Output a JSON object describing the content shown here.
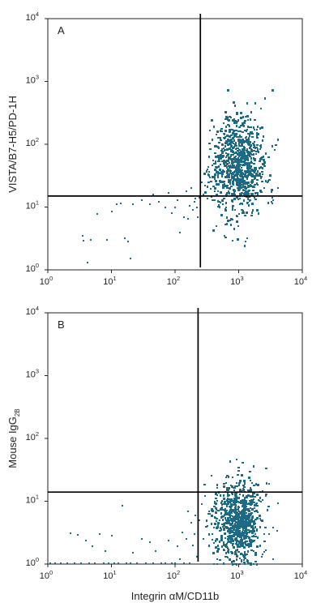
{
  "chart_data": [
    {
      "type": "scatter",
      "panel_label": "A",
      "xlabel": "",
      "ylabel": "VISTA/B7-H5/PD-1H",
      "x_scale": "log",
      "y_scale": "log",
      "xlim": [
        1,
        10000
      ],
      "ylim": [
        1,
        10000
      ],
      "xticks": [
        1,
        10,
        100,
        1000,
        10000
      ],
      "yticks": [
        1,
        10,
        100,
        1000,
        10000
      ],
      "tick_base": "10",
      "tick_exponents": [
        "0",
        "1",
        "2",
        "3",
        "4"
      ],
      "grid": false,
      "point_color": "#1d6a86",
      "quadrant_lines": {
        "x": 250,
        "y": 15
      },
      "cluster": {
        "x_center": 1000,
        "x_spread_decades": 0.2,
        "y_center": 45,
        "y_spread_decades": 0.38,
        "n_points": 900
      },
      "points": [
        [
          3.5,
          3.5
        ],
        [
          3.6,
          2.9
        ],
        [
          4.2,
          1.3
        ],
        [
          4.8,
          3.0
        ],
        [
          6.0,
          7.8
        ],
        [
          8.5,
          3.0
        ],
        [
          10,
          8.5
        ],
        [
          12,
          11
        ],
        [
          14,
          11.5
        ],
        [
          16,
          3.2
        ],
        [
          18,
          2.8
        ],
        [
          20,
          1.5
        ],
        [
          22,
          11
        ],
        [
          30,
          13
        ],
        [
          40,
          11
        ],
        [
          45,
          16
        ],
        [
          55,
          12
        ],
        [
          70,
          10
        ],
        [
          80,
          17
        ],
        [
          90,
          8
        ],
        [
          100,
          10
        ],
        [
          110,
          13
        ],
        [
          120,
          3.9
        ],
        [
          140,
          7
        ],
        [
          150,
          18
        ],
        [
          160,
          6.5
        ],
        [
          170,
          10.5
        ],
        [
          180,
          20
        ],
        [
          190,
          9
        ],
        [
          200,
          12
        ],
        [
          210,
          13.5
        ],
        [
          220,
          10
        ],
        [
          230,
          7
        ],
        [
          240,
          14
        ],
        [
          260,
          25
        ],
        [
          280,
          16
        ],
        [
          300,
          22
        ],
        [
          320,
          40
        ],
        [
          350,
          30
        ],
        [
          380,
          13
        ],
        [
          400,
          55
        ],
        [
          420,
          18
        ],
        [
          450,
          5
        ],
        [
          500,
          12
        ],
        [
          600,
          3.5
        ],
        [
          800,
          2.9
        ],
        [
          1300,
          2.8
        ],
        [
          2000,
          16
        ],
        [
          2800,
          25
        ],
        [
          3500,
          13
        ],
        [
          4200,
          20
        ]
      ]
    },
    {
      "type": "scatter",
      "panel_label": "B",
      "xlabel": "Integrin αM/CD11b",
      "ylabel": "Mouse IgG2B",
      "ylabel_main": "Mouse IgG",
      "ylabel_subscript": "2B",
      "x_scale": "log",
      "y_scale": "log",
      "xlim": [
        1,
        10000
      ],
      "ylim": [
        1,
        10000
      ],
      "xticks": [
        1,
        10,
        100,
        1000,
        10000
      ],
      "yticks": [
        1,
        10,
        100,
        1000,
        10000
      ],
      "tick_base": "10",
      "tick_exponents": [
        "0",
        "1",
        "2",
        "3",
        "4"
      ],
      "grid": false,
      "point_color": "#1d6a86",
      "quadrant_lines": {
        "x": 230,
        "y": 14
      },
      "cluster": {
        "x_center": 1000,
        "x_spread_decades": 0.19,
        "y_center": 5,
        "y_spread_decades": 0.32,
        "n_points": 800
      },
      "points": [
        [
          1.1,
          1.0
        ],
        [
          1.3,
          1.0
        ],
        [
          1.6,
          1.0
        ],
        [
          2,
          1.0
        ],
        [
          2.3,
          3.1
        ],
        [
          2.6,
          1.0
        ],
        [
          3,
          2.9
        ],
        [
          3.3,
          1.0
        ],
        [
          4,
          2.4
        ],
        [
          4.5,
          1.0
        ],
        [
          5,
          1.9
        ],
        [
          5.5,
          1.0
        ],
        [
          6.5,
          3.0
        ],
        [
          7.5,
          1.0
        ],
        [
          8,
          1.6
        ],
        [
          9,
          1.0
        ],
        [
          10,
          2.8
        ],
        [
          11,
          1.0
        ],
        [
          13,
          1.0
        ],
        [
          15,
          8.5
        ],
        [
          17,
          1.0
        ],
        [
          20,
          1.0
        ],
        [
          22,
          1.5
        ],
        [
          25,
          1.0
        ],
        [
          30,
          2.5
        ],
        [
          35,
          1.0
        ],
        [
          40,
          2.2
        ],
        [
          45,
          1.0
        ],
        [
          50,
          1.6
        ],
        [
          60,
          1.0
        ],
        [
          70,
          1.0
        ],
        [
          80,
          2.4
        ],
        [
          90,
          1.0
        ],
        [
          100,
          1.0
        ],
        [
          110,
          1.9
        ],
        [
          120,
          1.2
        ],
        [
          130,
          3.2
        ],
        [
          140,
          1.0
        ],
        [
          150,
          2.5
        ],
        [
          160,
          7
        ],
        [
          170,
          1.0
        ],
        [
          180,
          4.5
        ],
        [
          190,
          2.0
        ],
        [
          200,
          3.0
        ],
        [
          210,
          6
        ],
        [
          220,
          1.3
        ],
        [
          240,
          5
        ],
        [
          260,
          9
        ],
        [
          280,
          2.5
        ],
        [
          300,
          12
        ],
        [
          320,
          4
        ],
        [
          340,
          7
        ],
        [
          380,
          3
        ],
        [
          420,
          10
        ],
        [
          460,
          1.2
        ],
        [
          3000,
          3
        ],
        [
          3500,
          1.2
        ]
      ]
    }
  ]
}
